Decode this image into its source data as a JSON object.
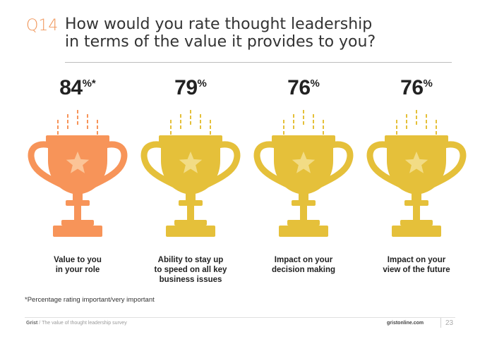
{
  "header": {
    "question_number": "Q14",
    "question_line1": "How would you rate thought leadership",
    "question_line2": "in terms of the value it provides to you?"
  },
  "items": [
    {
      "percent": "84",
      "suffix": "%*",
      "label_line1": "Value to you",
      "label_line2": "in your role",
      "label_line3": "",
      "color": "#f79459",
      "highlight": true
    },
    {
      "percent": "79",
      "suffix": "%",
      "label_line1": "Ability to stay up",
      "label_line2": "to speed on all key",
      "label_line3": "business issues",
      "color": "#e5c03a",
      "highlight": false
    },
    {
      "percent": "76",
      "suffix": "%",
      "label_line1": "Impact on your",
      "label_line2": "decision making",
      "label_line3": "",
      "color": "#e5c03a",
      "highlight": false
    },
    {
      "percent": "76",
      "suffix": "%",
      "label_line1": "Impact on your",
      "label_line2": "view of the future",
      "label_line3": "",
      "color": "#e5c03a",
      "highlight": false
    }
  ],
  "footnote": "*Percentage rating important/very important",
  "footer": {
    "brand": "Grist",
    "report": "The value of thought leadership survey",
    "site": "gristonline.com",
    "page": "23"
  },
  "icons": [
    "trophy-icon",
    "star-icon"
  ]
}
